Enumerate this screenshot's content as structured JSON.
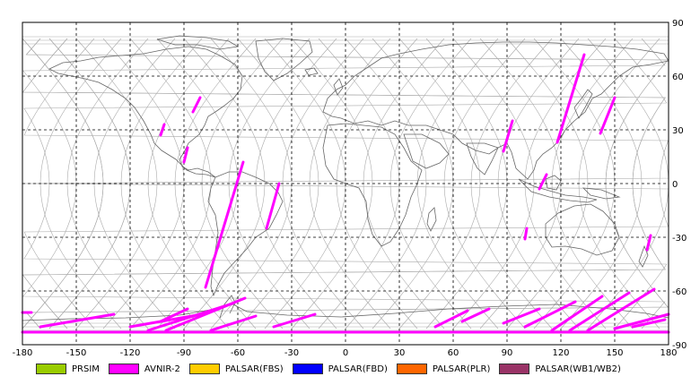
{
  "chart_data": {
    "type": "map",
    "projection": "equirectangular",
    "xlim": [
      -180,
      180
    ],
    "ylim": [
      -90,
      90
    ],
    "x_ticks": [
      "-180",
      "-150",
      "-120",
      "-90",
      "-60",
      "-30",
      "0",
      "30",
      "60",
      "90",
      "120",
      "150",
      "180"
    ],
    "y_ticks": [
      "90",
      "60",
      "30",
      "0",
      "-30",
      "-60",
      "-90"
    ],
    "grid": true,
    "legend_position": "bottom",
    "legend": [
      {
        "label": "PRSIM",
        "color": "#99cc00"
      },
      {
        "label": "AVNIR-2",
        "color": "#ff00ff"
      },
      {
        "label": "PALSAR(FBS)",
        "color": "#ffcc00"
      },
      {
        "label": "PALSAR(FBD)",
        "color": "#0000ff"
      },
      {
        "label": "PALSAR(PLR)",
        "color": "#ff6600"
      },
      {
        "label": "PALSAR(WB1/WB2)",
        "color": "#993366"
      }
    ],
    "observation_color": "#ff00ff",
    "track_color": "#aaaaaa",
    "coast_color": "#666666",
    "observation_segments": [
      {
        "lon1": -103,
        "lat1": 27,
        "lon2": -101,
        "lat2": 33
      },
      {
        "lon1": -90,
        "lat1": 12,
        "lon2": -88,
        "lat2": 20
      },
      {
        "lon1": -85,
        "lat1": 40,
        "lon2": -81,
        "lat2": 48
      },
      {
        "lon1": -78,
        "lat1": -58,
        "lon2": -57,
        "lat2": 12
      },
      {
        "lon1": -44,
        "lat1": -25,
        "lon2": -37,
        "lat2": 0
      },
      {
        "lon1": 88,
        "lat1": 18,
        "lon2": 93,
        "lat2": 35
      },
      {
        "lon1": 100,
        "lat1": -31,
        "lon2": 101,
        "lat2": -25
      },
      {
        "lon1": 108,
        "lat1": -3,
        "lon2": 112,
        "lat2": 5
      },
      {
        "lon1": 118,
        "lat1": 23,
        "lon2": 133,
        "lat2": 72
      },
      {
        "lon1": 142,
        "lat1": 28,
        "lon2": 150,
        "lat2": 48
      },
      {
        "lon1": 168,
        "lat1": -37,
        "lon2": 170,
        "lat2": -29
      },
      {
        "lon1": -180,
        "lat1": -72,
        "lon2": -175,
        "lat2": -72
      },
      {
        "lon1": -170,
        "lat1": -80,
        "lon2": -129,
        "lat2": -73
      },
      {
        "lon1": -103,
        "lat1": -77,
        "lon2": -88,
        "lat2": -70
      },
      {
        "lon1": -120,
        "lat1": -80,
        "lon2": -80,
        "lat2": -73
      },
      {
        "lon1": -110,
        "lat1": -82,
        "lon2": -63,
        "lat2": -67
      },
      {
        "lon1": -100,
        "lat1": -82,
        "lon2": -56,
        "lat2": -64
      },
      {
        "lon1": -75,
        "lat1": -82,
        "lon2": -50,
        "lat2": -74
      },
      {
        "lon1": -40,
        "lat1": -80,
        "lon2": -17,
        "lat2": -73
      },
      {
        "lon1": 50,
        "lat1": -80,
        "lon2": 68,
        "lat2": -71
      },
      {
        "lon1": 65,
        "lat1": -77,
        "lon2": 80,
        "lat2": -70
      },
      {
        "lon1": 88,
        "lat1": -78,
        "lon2": 108,
        "lat2": -70
      },
      {
        "lon1": 100,
        "lat1": -80,
        "lon2": 128,
        "lat2": -66
      },
      {
        "lon1": 115,
        "lat1": -82,
        "lon2": 143,
        "lat2": -63
      },
      {
        "lon1": 125,
        "lat1": -82,
        "lon2": 158,
        "lat2": -61
      },
      {
        "lon1": 135,
        "lat1": -82,
        "lon2": 172,
        "lat2": -59
      },
      {
        "lon1": 150,
        "lat1": -81,
        "lon2": 180,
        "lat2": -73
      },
      {
        "lon1": 160,
        "lat1": -80,
        "lon2": 178,
        "lat2": -76
      },
      {
        "lon1": -180,
        "lat1": -83,
        "lon2": 180,
        "lat2": -83
      }
    ]
  }
}
